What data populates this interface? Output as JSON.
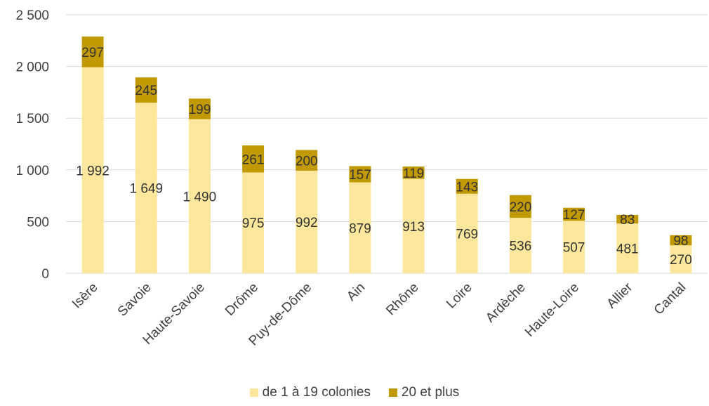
{
  "chart_data": {
    "type": "bar",
    "stacked": true,
    "title": "",
    "xlabel": "",
    "ylabel": "",
    "categories": [
      "Isère",
      "Savoie",
      "Haute-Savoie",
      "Drôme",
      "Puy-de-Dôme",
      "Ain",
      "Rhône",
      "Loire",
      "Ardèche",
      "Haute-Loire",
      "Allier",
      "Cantal"
    ],
    "series": [
      {
        "name": "de 1 à 19 colonies",
        "color": "#fde79c",
        "values": [
          1992,
          1649,
          1490,
          975,
          992,
          879,
          913,
          769,
          536,
          507,
          481,
          270
        ],
        "labels": [
          "1 992",
          "1 649",
          "1 490",
          "975",
          "992",
          "879",
          "913",
          "769",
          "536",
          "507",
          "481",
          "270"
        ]
      },
      {
        "name": "20 et plus",
        "color": "#c19a03",
        "values": [
          297,
          245,
          199,
          261,
          200,
          157,
          119,
          143,
          220,
          127,
          83,
          98
        ],
        "labels": [
          "297",
          "245",
          "199",
          "261",
          "200",
          "157",
          "119",
          "143",
          "220",
          "127",
          "83",
          "98"
        ]
      }
    ],
    "ylim": [
      0,
      2500
    ],
    "yticks": [
      0,
      500,
      1000,
      1500,
      2000,
      2500
    ],
    "ytick_labels": [
      "0",
      "500",
      "1 000",
      "1 500",
      "2 000",
      "2 500"
    ],
    "grid": true,
    "legend": "bottom"
  }
}
